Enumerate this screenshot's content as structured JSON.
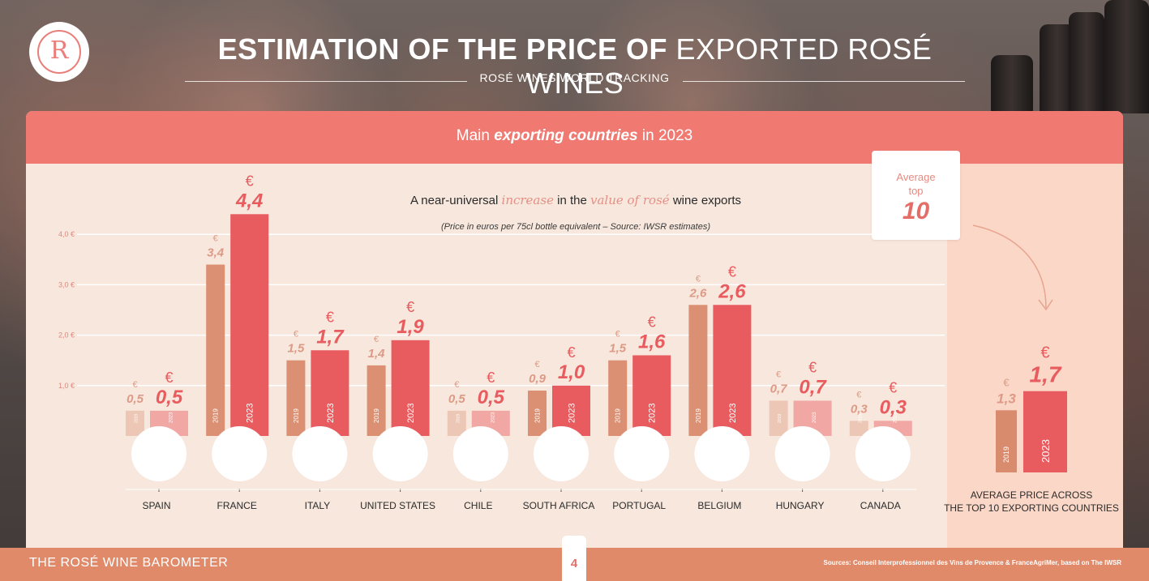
{
  "header": {
    "title_bold": "ESTIMATION OF THE PRICE OF",
    "title_light": "EXPORTED ROSÉ WINES",
    "subtitle": "ROSÉ WINES WORLD TRACKING",
    "logo_letter": "R"
  },
  "panel": {
    "heading_pre": "Main",
    "heading_em": "exporting countries",
    "heading_post": "in 2023",
    "chart_subtitle_pre": "A near-universal",
    "chart_subtitle_hl1": "increase",
    "chart_subtitle_mid": "in the",
    "chart_subtitle_hl2": "value of rosé",
    "chart_subtitle_post": "wine exports",
    "chart_note": "(Price in euros per 75cl bottle equivalent – Source: IWSR estimates)",
    "badge_line1": "Average",
    "badge_line2": "top",
    "badge_number": "10",
    "average_label_1": "AVERAGE PRICE ACROSS",
    "average_label_2": "THE TOP 10 EXPORTING COUNTRIES"
  },
  "footer": {
    "left": "THE ROSÉ WINE BAROMETER",
    "page": "4",
    "sources": "Sources: Conseil Interprofessionnel des Vins de Provence & FranceAgriMer, based on The IWSR"
  },
  "colors": {
    "accent": "#f07a72",
    "bar2019": "#d98b6d",
    "bar2023": "#e85c5f",
    "panel_bg": "#f7e7dc",
    "side_bg": "#fad7c7"
  },
  "chart_data": {
    "type": "bar",
    "categories": [
      "SPAIN",
      "FRANCE",
      "ITALY",
      "UNITED STATES",
      "CHILE",
      "SOUTH AFRICA",
      "PORTUGAL",
      "BELGIUM",
      "HUNGARY",
      "CANADA"
    ],
    "flags": [
      "spain-flag-icon",
      "france-flag-icon",
      "italy-flag-icon",
      "usa-flag-icon",
      "chile-flag-icon",
      "south-africa-flag-icon",
      "portugal-flag-icon",
      "belgium-flag-icon",
      "hungary-flag-icon",
      "canada-flag-icon"
    ],
    "series": [
      {
        "name": "2019",
        "values": [
          0.5,
          3.4,
          1.5,
          1.4,
          0.5,
          0.9,
          1.5,
          2.6,
          0.7,
          0.3
        ],
        "labels": [
          "0,5",
          "3,4",
          "1,5",
          "1,4",
          "0,5",
          "0,9",
          "1,5",
          "2,6",
          "0,7",
          "0,3"
        ]
      },
      {
        "name": "2023",
        "values": [
          0.5,
          4.4,
          1.7,
          1.9,
          0.5,
          1.0,
          1.6,
          2.6,
          0.7,
          0.3
        ],
        "labels": [
          "0,5",
          "4,4",
          "1,7",
          "1,9",
          "0,5",
          "1,0",
          "1,6",
          "2,6",
          "0,7",
          "0,3"
        ]
      }
    ],
    "average": {
      "years": [
        "2019",
        "2023"
      ],
      "values": [
        1.3,
        1.7
      ],
      "labels": [
        "1,3",
        "1,7"
      ]
    },
    "currency_symbol": "€",
    "yticks": [
      1.0,
      2.0,
      3.0,
      4.0
    ],
    "ytick_labels": [
      "1,0 €",
      "2,0 €",
      "3,0 €",
      "4,0 €"
    ],
    "ylim": [
      0,
      4.4
    ],
    "grid": true,
    "xlabel": "",
    "ylabel": ""
  }
}
